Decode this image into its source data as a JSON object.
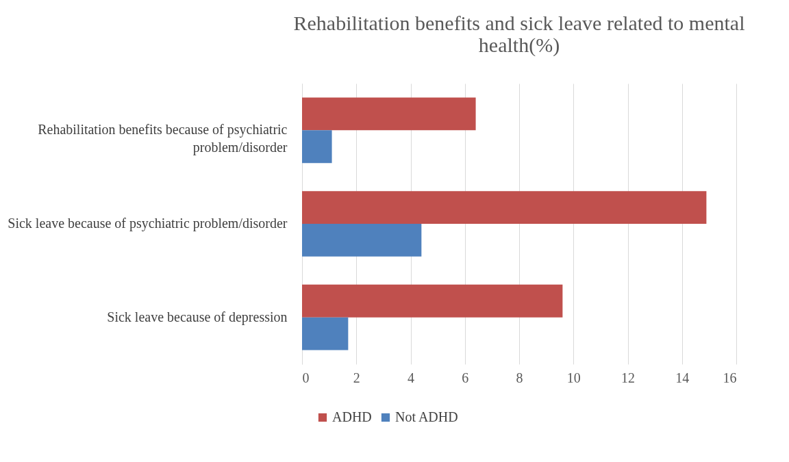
{
  "chart_data": {
    "type": "bar",
    "orientation": "horizontal",
    "title": "Rehabilitation benefits and sick leave related to mental health(%)",
    "categories": [
      "Rehabilitation benefits because of psychiatric problem/disorder",
      "Sick leave because of psychiatric problem/disorder",
      "Sick leave because of depression"
    ],
    "series": [
      {
        "name": "ADHD",
        "color": "#c0504d",
        "values": [
          6.4,
          14.9,
          9.6
        ]
      },
      {
        "name": "Not ADHD",
        "color": "#4f81bd",
        "values": [
          1.1,
          4.4,
          1.7
        ]
      }
    ],
    "xlim": [
      0,
      16
    ],
    "xticks": [
      0,
      2,
      4,
      6,
      8,
      10,
      12,
      14,
      16
    ],
    "grid": "x",
    "legend": "bottom"
  }
}
